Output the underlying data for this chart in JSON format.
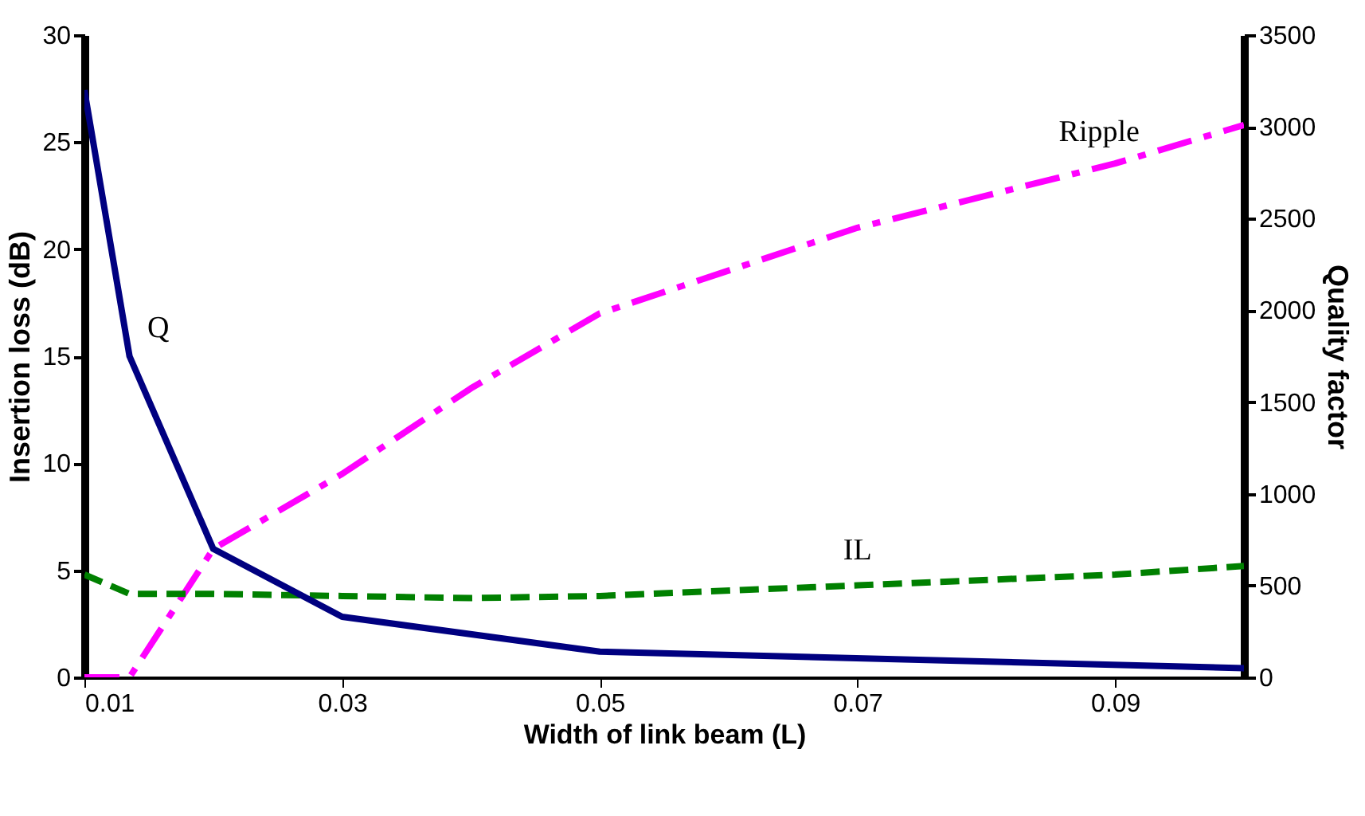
{
  "chart_data": {
    "type": "line",
    "xlabel": "Width of link beam (L)",
    "ylabel": "Insertion loss (dB)",
    "y2label": "Quality factor",
    "xlim": [
      0.01,
      0.1
    ],
    "xticks": [
      0.01,
      0.03,
      0.05,
      0.07,
      0.09
    ],
    "ylim": [
      0,
      30
    ],
    "yticks": [
      0,
      5,
      10,
      15,
      20,
      25,
      30
    ],
    "y2lim": [
      0,
      3500
    ],
    "y2ticks": [
      0,
      500,
      1000,
      1500,
      2000,
      2500,
      3000,
      3500
    ],
    "grid": false,
    "legend": false,
    "series": [
      {
        "name": "Q",
        "color": "#000080",
        "axis": "y2",
        "line_style": "solid",
        "x": [
          0.01,
          0.0135,
          0.02,
          0.03,
          0.05,
          0.1
        ],
        "values": [
          3200,
          1750,
          700,
          330,
          140,
          50
        ]
      },
      {
        "name": "Ripple",
        "color": "#ff00ff",
        "line_style": "dashed",
        "x": [
          0.01,
          0.0135,
          0.02,
          0.03,
          0.04,
          0.05,
          0.07,
          0.09,
          0.1
        ],
        "values": [
          0,
          0,
          6,
          9.5,
          13.5,
          17,
          21,
          24,
          25.8
        ]
      },
      {
        "name": "IL",
        "color": "#008000",
        "line_style": "dotted",
        "x": [
          0.01,
          0.0135,
          0.02,
          0.03,
          0.04,
          0.05,
          0.07,
          0.09,
          0.1
        ],
        "values": [
          4.8,
          3.9,
          3.9,
          3.8,
          3.7,
          3.8,
          4.3,
          4.8,
          5.2
        ]
      }
    ]
  }
}
